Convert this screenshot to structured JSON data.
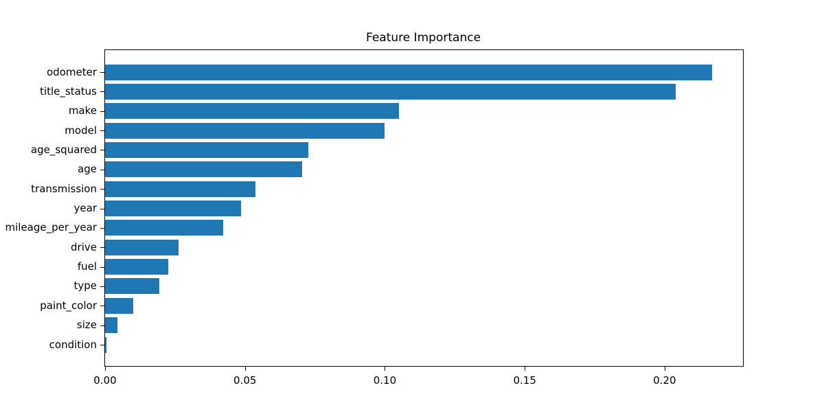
{
  "chart_data": {
    "type": "bar",
    "orientation": "horizontal",
    "title": "Feature Importance",
    "xlabel": "",
    "ylabel": "",
    "categories": [
      "odometer",
      "title_status",
      "make",
      "model",
      "age_squared",
      "age",
      "transmission",
      "year",
      "mileage_per_year",
      "drive",
      "fuel",
      "type",
      "paint_color",
      "size",
      "condition"
    ],
    "values": [
      0.217,
      0.204,
      0.105,
      0.1,
      0.0726,
      0.0704,
      0.0537,
      0.0486,
      0.0422,
      0.0263,
      0.0225,
      0.0194,
      0.01,
      0.0043,
      0.0005
    ],
    "xticks": [
      0.0,
      0.05,
      0.1,
      0.15,
      0.2
    ],
    "xtick_labels": [
      "0.00",
      "0.05",
      "0.10",
      "0.15",
      "0.20"
    ],
    "xlim": [
      0,
      0.228
    ],
    "grid": false,
    "legend": null,
    "bar_color": "#1f77b4",
    "spine_color": "#000000",
    "text_color": "#000000",
    "background_color": "#ffffff"
  }
}
